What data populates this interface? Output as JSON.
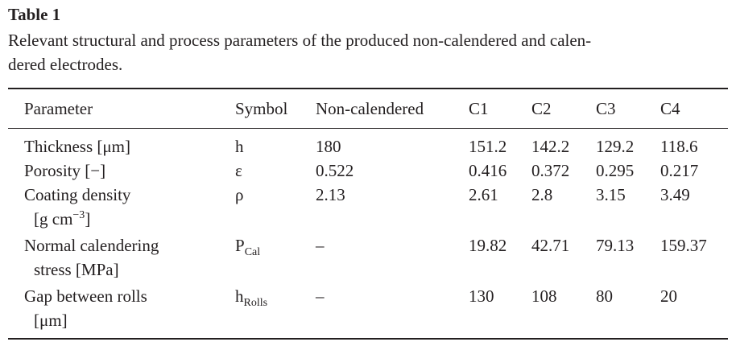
{
  "title": "Table 1",
  "caption": [
    "Relevant structural and process parameters of the produced non-calendered and calen-",
    "dered electrodes."
  ],
  "table": {
    "header": [
      "Parameter",
      "Symbol",
      "Non-calendered",
      "C1",
      "C2",
      "C3",
      "C4"
    ],
    "rows": [
      {
        "parameter": [
          {
            "text": "Thickness [μm]"
          }
        ],
        "symbol": {
          "text": "h"
        },
        "values": [
          "180",
          "151.2",
          "142.2",
          "129.2",
          "118.6"
        ]
      },
      {
        "parameter": [
          {
            "text": "Porosity [−]"
          }
        ],
        "symbol": {
          "text": "ε"
        },
        "values": [
          "0.522",
          "0.416",
          "0.372",
          "0.295",
          "0.217"
        ]
      },
      {
        "parameter": [
          {
            "text": "Coating density"
          },
          {
            "text": "[g cm",
            "sup": "−3",
            "after": "]"
          }
        ],
        "symbol": {
          "text": "ρ"
        },
        "values": [
          "2.13",
          "2.61",
          "2.8",
          "3.15",
          "3.49"
        ]
      },
      {
        "parameter": [
          {
            "text": "Normal calendering"
          },
          {
            "text": "stress [MPa]"
          }
        ],
        "symbol": {
          "text": "P",
          "sub": "Cal"
        },
        "values": [
          "–",
          "19.82",
          "42.71",
          "79.13",
          "159.37"
        ]
      },
      {
        "parameter": [
          {
            "text": "Gap between rolls"
          },
          {
            "text": "[μm]"
          }
        ],
        "symbol": {
          "text": "h",
          "sub": "Rolls"
        },
        "values": [
          "–",
          "130",
          "108",
          "80",
          "20"
        ]
      }
    ]
  }
}
